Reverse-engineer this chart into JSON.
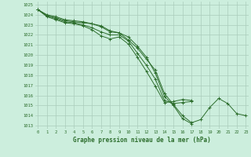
{
  "bg_color": "#cceedd",
  "grid_color": "#aaccbb",
  "line_color": "#2d6e2d",
  "xlabel": "Graphe pression niveau de la mer (hPa)",
  "ylim_min": 1013,
  "ylim_max": 1025,
  "xlim_min": 0,
  "xlim_max": 23,
  "yticks": [
    1013,
    1014,
    1015,
    1016,
    1017,
    1018,
    1019,
    1020,
    1021,
    1022,
    1023,
    1024,
    1025
  ],
  "xticks": [
    0,
    1,
    2,
    3,
    4,
    5,
    6,
    7,
    8,
    9,
    10,
    11,
    12,
    13,
    14,
    15,
    16,
    17,
    18,
    19,
    20,
    21,
    22,
    23
  ],
  "series": [
    [
      1024.5,
      1024.0,
      1023.8,
      1023.5,
      1023.4,
      1023.3,
      1023.1,
      1022.9,
      1022.4,
      1022.2,
      1021.5,
      1020.7,
      1019.6,
      1018.5,
      1016.2,
      1015.1,
      1014.0,
      1013.3,
      1013.6,
      1014.8,
      1015.7,
      1015.2,
      1014.2,
      1014.0
    ],
    [
      1024.5,
      1023.9,
      1023.7,
      1023.4,
      1023.3,
      1023.2,
      1023.1,
      1022.8,
      1022.3,
      1022.2,
      1021.8,
      1020.9,
      1019.8,
      1018.2,
      1015.9,
      1015.0,
      1013.7,
      1013.2,
      null,
      null,
      null,
      null,
      null,
      null
    ],
    [
      1024.5,
      1023.9,
      1023.6,
      1023.3,
      1023.2,
      1023.0,
      1022.7,
      1022.3,
      1022.0,
      1022.0,
      1021.4,
      1020.2,
      1019.0,
      1017.6,
      1015.5,
      1015.2,
      1015.3,
      1015.4,
      null,
      null,
      null,
      null,
      null,
      null
    ],
    [
      1024.5,
      1023.8,
      1023.5,
      1023.2,
      1023.1,
      1022.9,
      1022.5,
      1021.9,
      1021.6,
      1021.8,
      1021.1,
      1019.8,
      1018.4,
      1016.9,
      1015.3,
      1015.4,
      1015.6,
      1015.5,
      null,
      null,
      null,
      null,
      null,
      null
    ]
  ]
}
